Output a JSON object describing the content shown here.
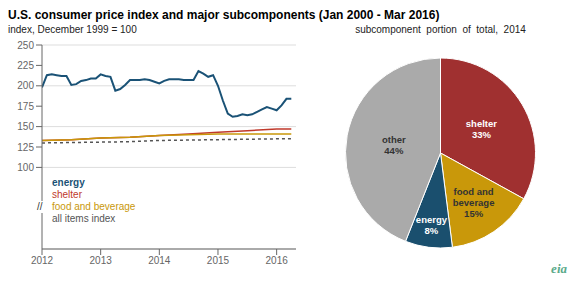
{
  "chart_data": [
    {
      "type": "line",
      "title": "U.S. consumer price index and major subcomponents (Jan 2000 - Mar 2016)",
      "subtitle": "index, December 1999 = 100",
      "series": [
        {
          "name": "energy",
          "color": "#1a5276",
          "x": [
            2012.0,
            2012.083,
            2012.167,
            2012.25,
            2012.333,
            2012.417,
            2012.5,
            2012.583,
            2012.667,
            2012.75,
            2012.833,
            2012.917,
            2013.0,
            2013.083,
            2013.167,
            2013.25,
            2013.333,
            2013.417,
            2013.5,
            2013.583,
            2013.667,
            2013.75,
            2013.833,
            2013.917,
            2014.0,
            2014.083,
            2014.167,
            2014.25,
            2014.333,
            2014.417,
            2014.5,
            2014.583,
            2014.667,
            2014.75,
            2014.833,
            2014.917,
            2015.0,
            2015.083,
            2015.167,
            2015.25,
            2015.333,
            2015.417,
            2015.5,
            2015.583,
            2015.667,
            2015.75,
            2015.833,
            2015.917,
            2016.0,
            2016.083,
            2016.167,
            2016.25
          ],
          "values": [
            198,
            213,
            214,
            213,
            212,
            212,
            201,
            202,
            206,
            207,
            209,
            209,
            214,
            212,
            211,
            194,
            196,
            201,
            207,
            207,
            207,
            208,
            207,
            205,
            203,
            206,
            208,
            208,
            208,
            207,
            207,
            207,
            218,
            215,
            211,
            213,
            200,
            182,
            166,
            162,
            163,
            165,
            164,
            165,
            168,
            171,
            174,
            172,
            170,
            176,
            184,
            184
          ]
        },
        {
          "name": "shelter",
          "color": "#c0392b",
          "x": [
            2012.0,
            2012.5,
            2013.0,
            2013.5,
            2014.0,
            2014.5,
            2015.0,
            2015.5,
            2016.0,
            2016.25
          ],
          "values": [
            133,
            134,
            136,
            137,
            139,
            141,
            143,
            145,
            147,
            147
          ]
        },
        {
          "name": "food and beverage",
          "color": "#c9980a",
          "x": [
            2012.0,
            2012.5,
            2013.0,
            2013.5,
            2014.0,
            2014.5,
            2015.0,
            2015.5,
            2016.0,
            2016.25
          ],
          "values": [
            133,
            134,
            136,
            137,
            139,
            140,
            141,
            141,
            141,
            141
          ]
        },
        {
          "name": "all items index",
          "color": "#555555",
          "line_style": "dashed",
          "x": [
            2012.0,
            2012.5,
            2013.0,
            2013.5,
            2014.0,
            2014.5,
            2015.0,
            2015.5,
            2016.0,
            2016.25
          ],
          "values": [
            130,
            130.5,
            131,
            131.5,
            133,
            133.5,
            134,
            134.5,
            135,
            135
          ]
        }
      ],
      "xlim": [
        2012,
        2016.33
      ],
      "xticks": [
        2012,
        2013,
        2014,
        2015,
        2016
      ],
      "ylim": [
        0,
        250
      ],
      "yticks": [
        100,
        125,
        150,
        175,
        200,
        225,
        250
      ],
      "grid": true,
      "annotations": [
        {
          "text": "//"
        },
        {
          "text": "eia",
          "color": "#5aaa8a"
        }
      ]
    },
    {
      "type": "pie",
      "subtitle": "subcomponent  portion  of  total,  2014",
      "categories": [
        "shelter",
        "food and beverage",
        "energy",
        "other"
      ],
      "values": [
        33,
        15,
        8,
        44
      ],
      "colors": [
        "#a03030",
        "#c9980a",
        "#1a4f6e",
        "#aaaaaa"
      ],
      "data_labels": true,
      "value_labels": [
        "33%",
        "15%",
        "8%",
        "44%"
      ]
    }
  ]
}
